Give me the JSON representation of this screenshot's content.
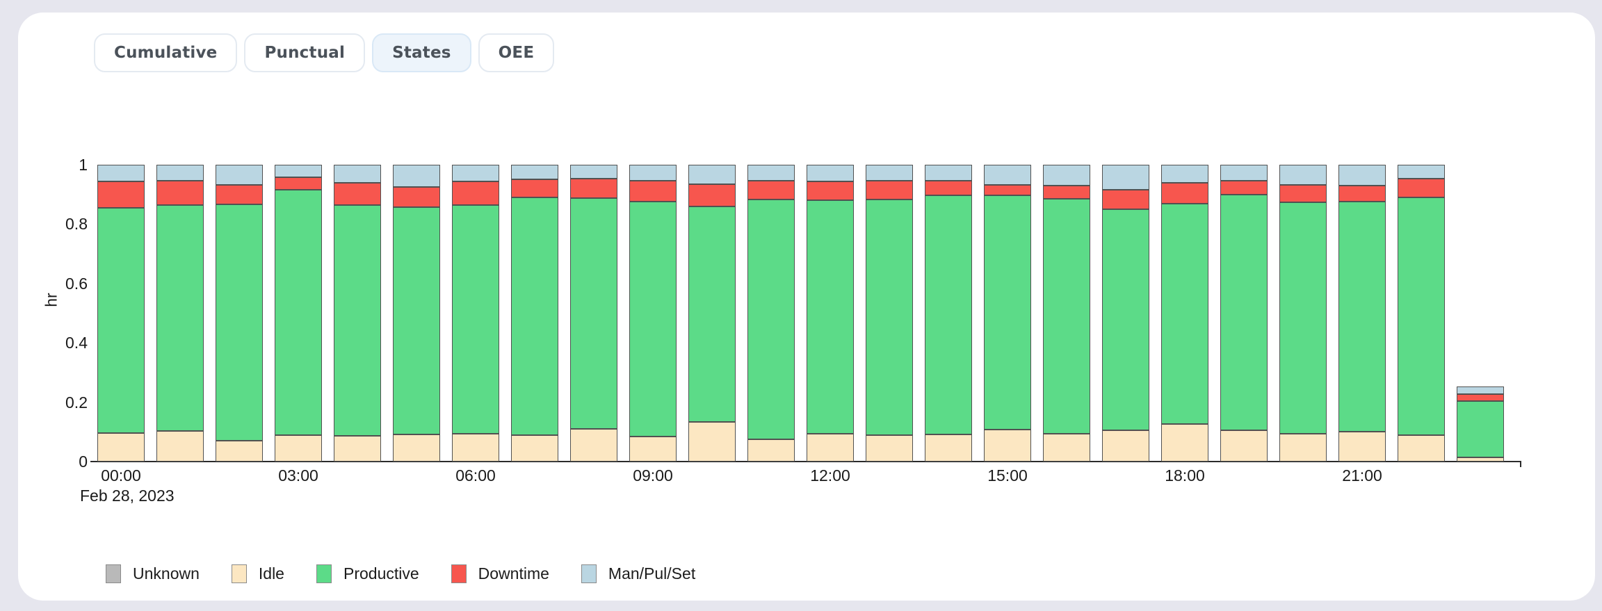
{
  "page": {
    "background": "#e6e6ee",
    "card_background": "#ffffff"
  },
  "tabs": {
    "items": [
      {
        "label": "Cumulative",
        "active": false
      },
      {
        "label": "Punctual",
        "active": false
      },
      {
        "label": "States",
        "active": true
      },
      {
        "label": "OEE",
        "active": false
      }
    ],
    "active_background": "#edf4fb"
  },
  "chart_data": {
    "type": "bar",
    "stacked": true,
    "title": "",
    "ylabel": "hr",
    "xlabel_date": "Feb 28, 2023",
    "ylim": [
      0,
      1
    ],
    "yticks": [
      0,
      0.2,
      0.4,
      0.6,
      0.8,
      1
    ],
    "ytick_labels": [
      "0",
      "0.2",
      "0.4",
      "0.6",
      "0.8",
      "1"
    ],
    "categories": [
      "00:00",
      "01:00",
      "02:00",
      "03:00",
      "04:00",
      "05:00",
      "06:00",
      "07:00",
      "08:00",
      "09:00",
      "10:00",
      "11:00",
      "12:00",
      "13:00",
      "14:00",
      "15:00",
      "16:00",
      "17:00",
      "18:00",
      "19:00",
      "20:00",
      "21:00",
      "22:00",
      "23:00"
    ],
    "xtick_labels": [
      "00:00",
      "03:00",
      "06:00",
      "09:00",
      "12:00",
      "15:00",
      "18:00",
      "21:00"
    ],
    "xtick_every": 3,
    "grid": false,
    "legend_position": "bottom",
    "series": [
      {
        "name": "Unknown",
        "color": "#b9b9b9",
        "values": [
          0,
          0,
          0,
          0,
          0,
          0,
          0,
          0,
          0,
          0,
          0,
          0,
          0,
          0,
          0,
          0,
          0,
          0,
          0,
          0,
          0,
          0,
          0,
          0
        ]
      },
      {
        "name": "Idle",
        "color": "#fce7c2",
        "values": [
          0.096,
          0.102,
          0.07,
          0.09,
          0.086,
          0.091,
          0.093,
          0.089,
          0.111,
          0.085,
          0.134,
          0.075,
          0.093,
          0.088,
          0.091,
          0.108,
          0.093,
          0.106,
          0.126,
          0.105,
          0.093,
          0.101,
          0.088,
          0.013
        ]
      },
      {
        "name": "Productive",
        "color": "#5cdb88",
        "values": [
          0.758,
          0.761,
          0.796,
          0.826,
          0.777,
          0.767,
          0.771,
          0.8,
          0.776,
          0.792,
          0.725,
          0.807,
          0.788,
          0.794,
          0.807,
          0.79,
          0.792,
          0.744,
          0.742,
          0.794,
          0.78,
          0.774,
          0.802,
          0.191
        ]
      },
      {
        "name": "Downtime",
        "color": "#f7564e",
        "values": [
          0.09,
          0.082,
          0.066,
          0.043,
          0.077,
          0.066,
          0.08,
          0.061,
          0.067,
          0.068,
          0.075,
          0.063,
          0.062,
          0.065,
          0.048,
          0.033,
          0.045,
          0.066,
          0.072,
          0.048,
          0.059,
          0.055,
          0.062,
          0.023
        ]
      },
      {
        "name": "Man/Pul/Set",
        "color": "#bad6e2",
        "values": [
          0.056,
          0.055,
          0.068,
          0.041,
          0.06,
          0.076,
          0.056,
          0.05,
          0.046,
          0.055,
          0.066,
          0.055,
          0.057,
          0.053,
          0.054,
          0.069,
          0.07,
          0.084,
          0.06,
          0.053,
          0.068,
          0.07,
          0.048,
          0.026
        ]
      }
    ]
  }
}
